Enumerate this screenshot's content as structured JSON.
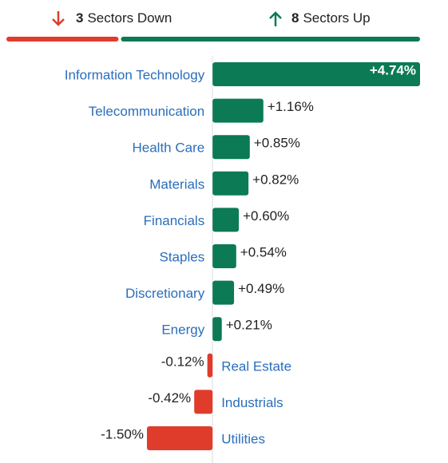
{
  "summary": {
    "down": {
      "count": 3,
      "label": "Sectors Down",
      "color": "#e03c2c"
    },
    "up": {
      "count": 8,
      "label": "Sectors Up",
      "color": "#0b7a55"
    }
  },
  "chart_data": {
    "type": "hbar",
    "categories": [
      "Information Technology",
      "Telecommunication",
      "Health Care",
      "Materials",
      "Financials",
      "Staples",
      "Discretionary",
      "Energy",
      "Real Estate",
      "Industrials",
      "Utilities"
    ],
    "values": [
      4.74,
      1.16,
      0.85,
      0.82,
      0.6,
      0.54,
      0.49,
      0.21,
      -0.12,
      -0.42,
      -1.5
    ],
    "value_labels": [
      "+4.74%",
      "+1.16%",
      "+0.85%",
      "+0.82%",
      "+0.60%",
      "+0.54%",
      "+0.49%",
      "+0.21%",
      "-0.12%",
      "-0.42%",
      "-1.50%"
    ],
    "xlim": [
      -1.5,
      4.74
    ],
    "positive_color": "#0b7a55",
    "negative_color": "#e03c2c"
  }
}
